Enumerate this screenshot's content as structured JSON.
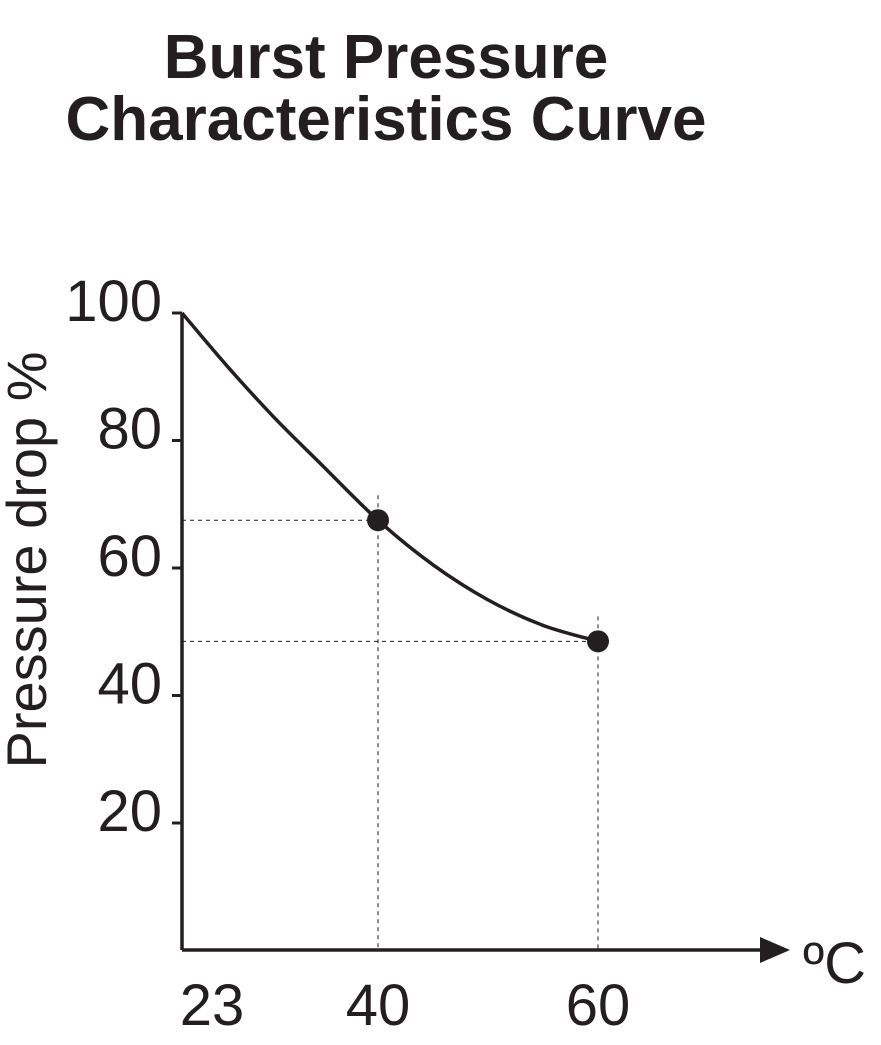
{
  "chart_data": {
    "type": "line",
    "title_lines": [
      "Burst Pressure",
      "Characteristics Curve"
    ],
    "xlabel": "",
    "x_unit": "ºC",
    "ylabel": "Pressure drop %",
    "x_tick_labels": [
      "23",
      "40",
      "60"
    ],
    "y_tick_labels": [
      "100",
      "80",
      "60",
      "40",
      "20"
    ],
    "x_ticks": [
      23,
      40,
      60
    ],
    "y_ticks": [
      100,
      80,
      60,
      40,
      20
    ],
    "grid": false,
    "series": [
      {
        "x": [
          23,
          27,
          31,
          35,
          40,
          45,
          50,
          55,
          60
        ],
        "y": [
          100,
          91.5,
          83.6,
          76.4,
          67.5,
          60.5,
          55,
          51,
          48.5
        ]
      }
    ],
    "markers": [
      {
        "x": 40,
        "y": 67.5
      },
      {
        "x": 60,
        "y": 48.5
      }
    ],
    "colors": {
      "ink": "#231f20"
    }
  }
}
